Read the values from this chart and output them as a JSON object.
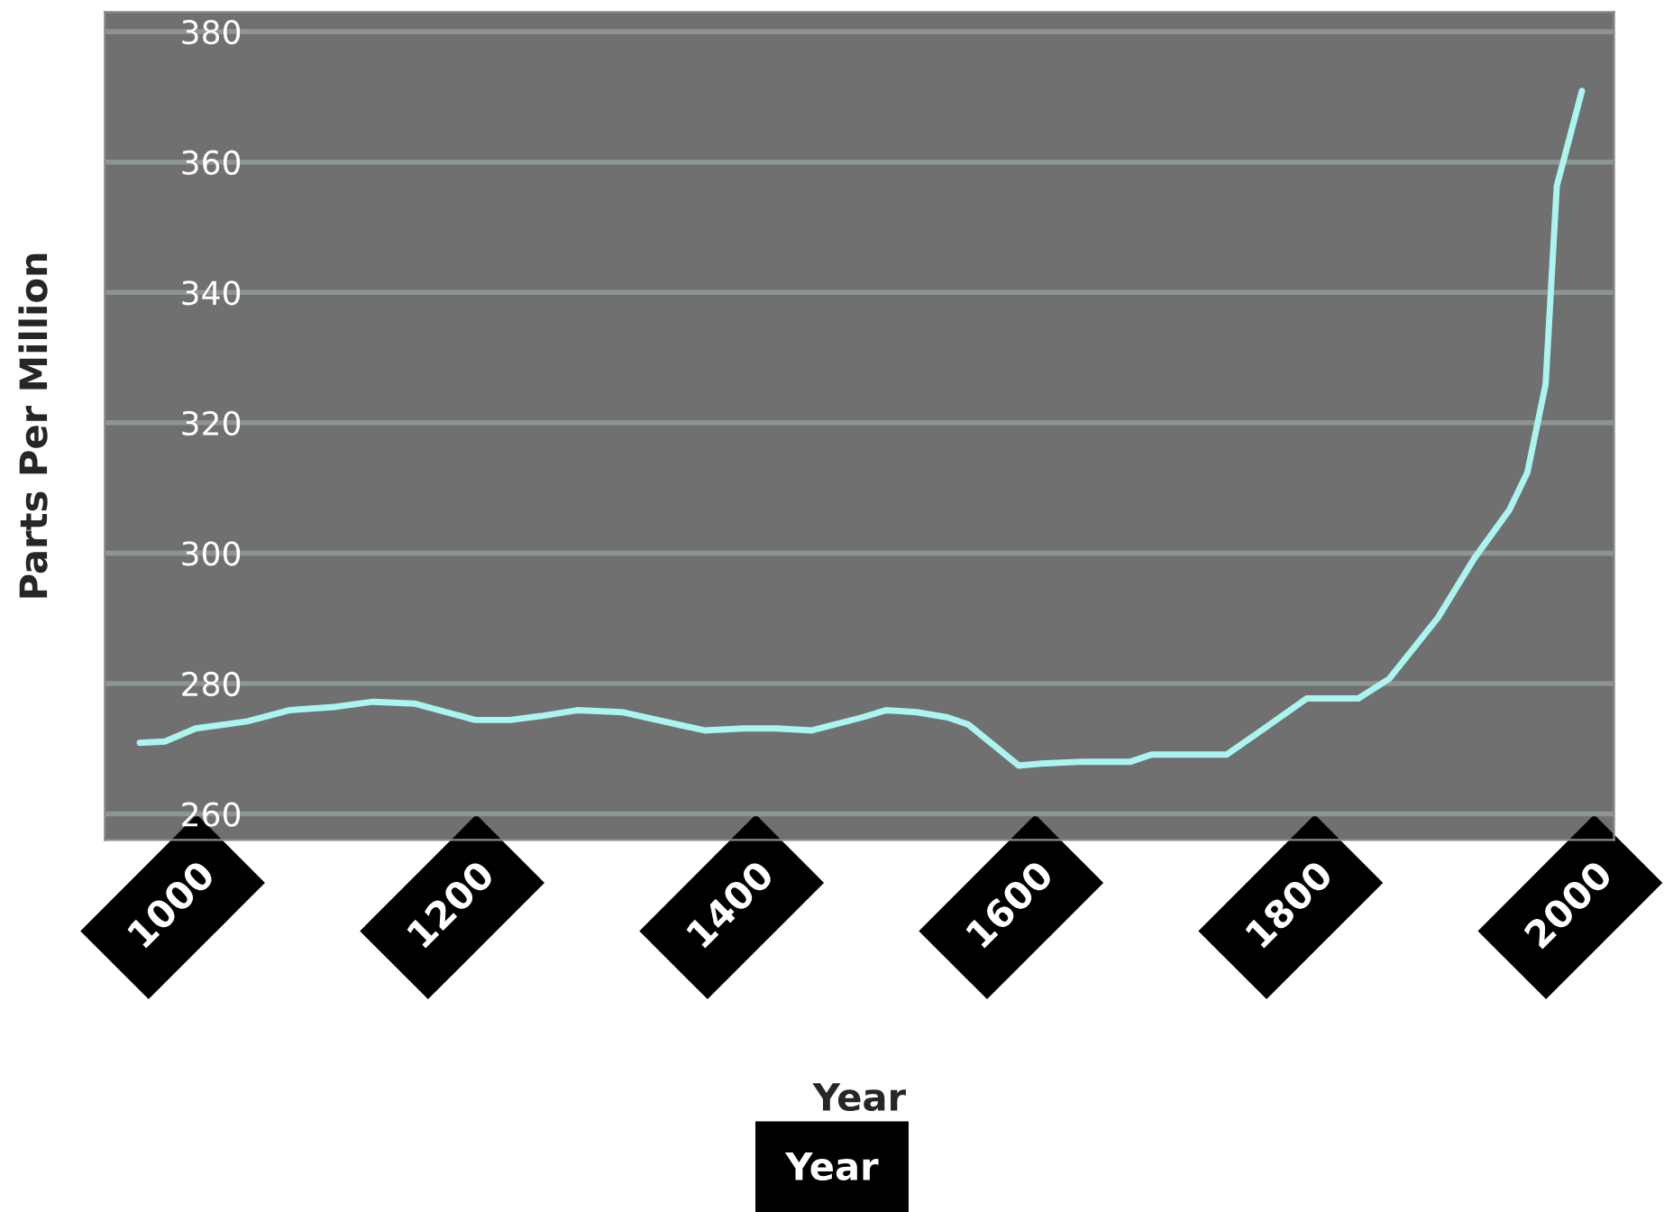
{
  "chart_data": {
    "type": "line",
    "xlabel": "Year",
    "ylabel": "Parts Per Million",
    "annotations": [
      "Year"
    ],
    "x": [
      950,
      968,
      990,
      1027,
      1057,
      1089,
      1117,
      1147,
      1190,
      1215,
      1237,
      1263,
      1295,
      1354,
      1383,
      1405,
      1431,
      1467,
      1484,
      1506,
      1528,
      1543,
      1579,
      1595,
      1625,
      1659,
      1674,
      1728,
      1754,
      1785,
      1822,
      1844,
      1879,
      1905,
      1930,
      1943,
      1956,
      1964,
      1982
    ],
    "series": [
      {
        "color": "#aaf5f0",
        "values": [
          270.9,
          271.1,
          273.1,
          274.2,
          275.9,
          276.4,
          277.2,
          276.9,
          274.4,
          274.4,
          275.0,
          275.9,
          275.6,
          272.8,
          273.1,
          273.1,
          272.8,
          274.8,
          275.9,
          275.6,
          274.8,
          273.7,
          267.4,
          267.7,
          268.0,
          268.0,
          269.1,
          269.1,
          273.0,
          277.7,
          277.7,
          280.7,
          290.1,
          299.2,
          306.6,
          312.4,
          325.9,
          356.3,
          370.9
        ]
      }
    ],
    "xlim": [
      925,
      2005
    ],
    "ylim": [
      256,
      383
    ],
    "xticks": [
      1000,
      1200,
      1400,
      1600,
      1800,
      2000
    ],
    "yticks": [
      260,
      280,
      300,
      320,
      340,
      360,
      380
    ],
    "grid": "y",
    "legend": false
  }
}
